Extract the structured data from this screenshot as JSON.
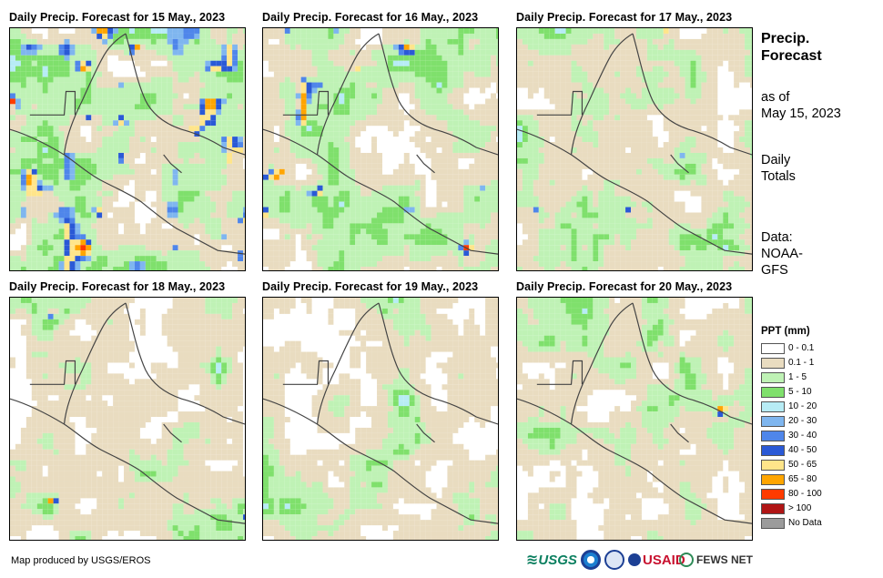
{
  "panels": [
    {
      "title": "Daily Precip. Forecast for 15 May., 2023",
      "wet": 0.55,
      "heavy": 0.3
    },
    {
      "title": "Daily Precip. Forecast for 16 May., 2023",
      "wet": 0.5,
      "heavy": 0.15
    },
    {
      "title": "Daily Precip. Forecast for 17 May., 2023",
      "wet": 0.42,
      "heavy": 0.08
    },
    {
      "title": "Daily Precip. Forecast for 18 May., 2023",
      "wet": 0.35,
      "heavy": 0.05
    },
    {
      "title": "Daily Precip. Forecast for 19 May., 2023",
      "wet": 0.38,
      "heavy": 0.04
    },
    {
      "title": "Daily Precip. Forecast for 20 May., 2023",
      "wet": 0.4,
      "heavy": 0.1
    }
  ],
  "sidebar": {
    "title_line1": "Precip.",
    "title_line2": "Forecast",
    "asof_line1": "as of",
    "asof_line2": "May 15, 2023",
    "totals_line1": "Daily",
    "totals_line2": "Totals",
    "source_line1": "Data:",
    "source_line2": "NOAA-",
    "source_line3": "GFS"
  },
  "legend": {
    "title": "PPT (mm)",
    "items": [
      {
        "label": "0 - 0.1",
        "color": "#ffffff"
      },
      {
        "label": "0.1 - 1",
        "color": "#e9dcc0"
      },
      {
        "label": "1 - 5",
        "color": "#bff2b5"
      },
      {
        "label": "5 - 10",
        "color": "#7fe06c"
      },
      {
        "label": "10 - 20",
        "color": "#b7ecf5"
      },
      {
        "label": "20 - 30",
        "color": "#7fb6ef"
      },
      {
        "label": "30 - 40",
        "color": "#4f86ea"
      },
      {
        "label": "40 - 50",
        "color": "#2a59d6"
      },
      {
        "label": "50 - 65",
        "color": "#ffe58a"
      },
      {
        "label": "65 - 80",
        "color": "#ffa500"
      },
      {
        "label": "80 - 100",
        "color": "#ff3b00"
      },
      {
        "label": "> 100",
        "color": "#b01515"
      },
      {
        "label": "No Data",
        "color": "#9b9b9b"
      }
    ]
  },
  "credit": "Map produced by USGS/EROS",
  "logos": {
    "usgs": "USGS",
    "usaid": "USAID",
    "fewsnet": "FEWS NET"
  }
}
